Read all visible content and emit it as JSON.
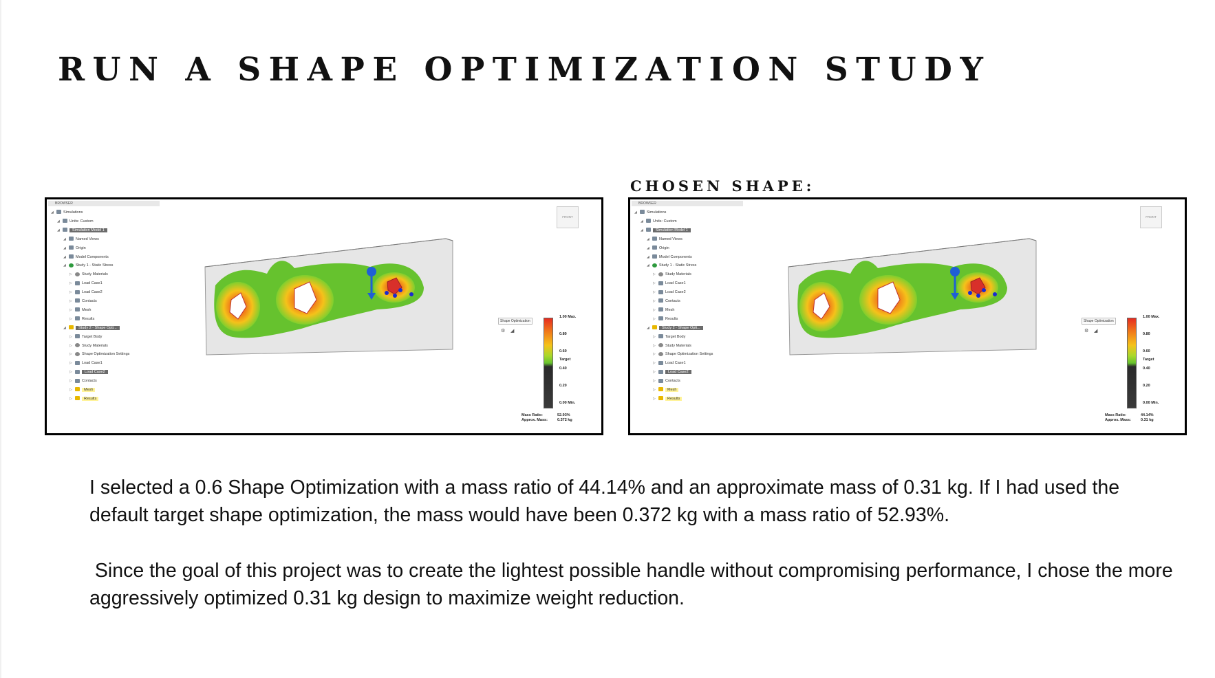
{
  "title": "RUN A SHAPE OPTIMIZATION STUDY",
  "chosen_label": "CHOSEN SHAPE:",
  "browser_header": "BROWSER",
  "view_cube": {
    "front": "FRONT",
    "right": "RIGHT",
    "top_axis": "Z",
    "x_axis": "X"
  },
  "tree": [
    {
      "label": "Simulations",
      "depth": 0,
      "icon": "folder-icon",
      "style": ""
    },
    {
      "label": "Units: Custom",
      "depth": 1,
      "icon": "document-icon",
      "style": ""
    },
    {
      "label": "Simulation Model 1",
      "depth": 1,
      "icon": "model-icon",
      "style": "sel"
    },
    {
      "label": "Named Views",
      "depth": 2,
      "icon": "folder-icon",
      "style": ""
    },
    {
      "label": "Origin",
      "depth": 2,
      "icon": "folder-icon",
      "style": ""
    },
    {
      "label": "Model Components",
      "depth": 2,
      "icon": "folder-icon",
      "style": ""
    },
    {
      "label": "Study 1 - Static Stress",
      "depth": 2,
      "icon": "check-icon",
      "style": ""
    },
    {
      "label": "Study Materials",
      "depth": 3,
      "icon": "material-icon",
      "style": ""
    },
    {
      "label": "Load Case1",
      "depth": 3,
      "icon": "load-case-icon",
      "style": ""
    },
    {
      "label": "Load Case2",
      "depth": 3,
      "icon": "load-case-icon",
      "style": ""
    },
    {
      "label": "Contacts",
      "depth": 3,
      "icon": "contacts-icon",
      "style": ""
    },
    {
      "label": "Mesh",
      "depth": 3,
      "icon": "mesh-icon",
      "style": ""
    },
    {
      "label": "Results",
      "depth": 3,
      "icon": "results-icon",
      "style": ""
    },
    {
      "label": "Study 2 - Shape Opti...",
      "depth": 2,
      "icon": "warning-icon",
      "style": "sel"
    },
    {
      "label": "Target Body",
      "depth": 3,
      "icon": "body-icon",
      "style": ""
    },
    {
      "label": "Study Materials",
      "depth": 3,
      "icon": "material-icon",
      "style": ""
    },
    {
      "label": "Shape Optimization Settings",
      "depth": 3,
      "icon": "settings-icon",
      "style": ""
    },
    {
      "label": "Load Case1",
      "depth": 3,
      "icon": "load-case-icon",
      "style": ""
    },
    {
      "label": "Load Case2",
      "depth": 3,
      "icon": "load-case-icon",
      "style": "sel"
    },
    {
      "label": "Contacts",
      "depth": 3,
      "icon": "contacts-icon",
      "style": ""
    },
    {
      "label": "Mesh",
      "depth": 3,
      "icon": "warning-icon",
      "style": "hl"
    },
    {
      "label": "Results",
      "depth": 3,
      "icon": "warning-icon",
      "style": "hl"
    }
  ],
  "shape_dropdown": "Shape Optimization",
  "scale_ticks": [
    "1.00 Max.",
    "0.80",
    "0.60",
    "Target",
    "0.40",
    "0.20",
    "0.00 Min."
  ],
  "mass_labels": [
    "Mass Ratio:",
    "Approx. Mass:"
  ],
  "screenshots": [
    {
      "name": "default-target",
      "mass_ratio": "52.93%",
      "approx_mass": "0.372 kg"
    },
    {
      "name": "chosen-0.6",
      "mass_ratio": "44.14%",
      "approx_mass": "0.31 kg"
    }
  ],
  "colors": {
    "high": "#e52c20",
    "mid": "#f5c21a",
    "low": "#66c22e",
    "arrow": "#1f5fd6"
  },
  "paragraph1": "I selected a 0.6 Shape Optimization with a mass ratio of 44.14% and an approximate mass of 0.31 kg. If I had used the default target shape optimization, the mass would have been 0.372 kg with a mass ratio of 52.93%.",
  "paragraph2": " Since the goal of this project was to create the lightest possible handle without compromising performance, I chose the more aggressively optimized 0.31 kg design to maximize weight reduction."
}
